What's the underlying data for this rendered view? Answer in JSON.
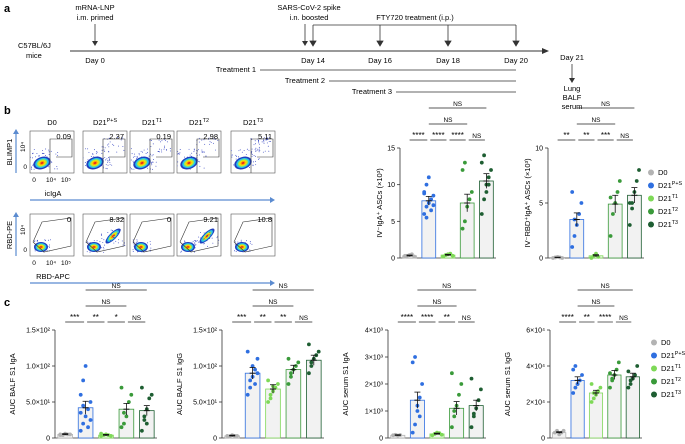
{
  "panel_labels": {
    "a": "a",
    "b": "b",
    "c": "c"
  },
  "timeline": {
    "mouse_line1": "C57BL/6J",
    "mouse_line2": "mice",
    "events": [
      {
        "day": "Day 0",
        "note1": "mRNA-LNP",
        "note2": "i.m. primed"
      },
      {
        "day": "Day 14",
        "note1": "SARS-CoV-2 spike",
        "note2": "i.n. boosted"
      },
      {
        "day": "Day 16",
        "note1": "",
        "note2": ""
      },
      {
        "day": "Day 18",
        "note1": "",
        "note2": ""
      },
      {
        "day": "Day 20",
        "note1": "",
        "note2": ""
      },
      {
        "day": "Day 21",
        "note1": "",
        "note2": ""
      }
    ],
    "fty_label": "FTY720 treatment (i.p.)",
    "treatments": [
      "Treatment 1",
      "Treatment 2",
      "Treatment 3"
    ],
    "collect": [
      "Lung",
      "BALF",
      "serum"
    ]
  },
  "flow": {
    "groups": [
      "D0",
      "D21P+S",
      "D21T1",
      "D21T2",
      "D21T3"
    ],
    "group_display": [
      {
        "base": "D0",
        "sup": ""
      },
      {
        "base": "D21",
        "sup": "P+S"
      },
      {
        "base": "D21",
        "sup": "T1"
      },
      {
        "base": "D21",
        "sup": "T2"
      },
      {
        "base": "D21",
        "sup": "T3"
      }
    ],
    "row1": {
      "ylabel": "BLIMP1",
      "xlabel": "icIgA",
      "values": [
        "0.09",
        "2.37",
        "0.19",
        "2.98",
        "5.11"
      ]
    },
    "row2": {
      "ylabel": "RBD-PE",
      "xlabel": "RBD-APC",
      "values": [
        "0",
        "8.32",
        "0",
        "9.21",
        "10.8"
      ]
    },
    "ticks_x": [
      "0",
      "10⁴",
      "10⁵"
    ],
    "ticks_y": [
      "0",
      "10⁴"
    ]
  },
  "legend": {
    "entries": [
      {
        "base": "D0",
        "sup": "",
        "color": "#b3b3b3"
      },
      {
        "base": "D21",
        "sup": "P+S",
        "color": "#2f6fe0"
      },
      {
        "base": "D21",
        "sup": "T1",
        "color": "#7ed957"
      },
      {
        "base": "D21",
        "sup": "T2",
        "color": "#3a9a3a"
      },
      {
        "base": "D21",
        "sup": "T3",
        "color": "#1e5e32"
      }
    ]
  },
  "colors": {
    "D0": "#b3b3b3",
    "PS": "#2f6fe0",
    "T1": "#7ed957",
    "T2": "#3a9a3a",
    "T3": "#1e5e32",
    "bar": "#f2f2f2"
  },
  "chart_data": [
    {
      "id": "b1",
      "type": "bar",
      "title": "",
      "ylabel": "IV⁻IgA⁺ ASCs (×10³)",
      "categories": [
        "D0",
        "D21P+S",
        "D21T1",
        "D21T2",
        "D21T3"
      ],
      "values": [
        0.3,
        7.8,
        0.4,
        7.5,
        10.5
      ],
      "errors": [
        0.1,
        0.6,
        0.1,
        1.2,
        1.0
      ],
      "ylim": [
        0,
        15
      ],
      "ticks": [
        0,
        5,
        10,
        15
      ],
      "points": [
        [
          0.2,
          0.3,
          0.4,
          0.5,
          0.2,
          0.3
        ],
        [
          6,
          7,
          7.5,
          8,
          8.5,
          9,
          10,
          11,
          6.5,
          7.2,
          8.8,
          5.5
        ],
        [
          0.2,
          0.4,
          0.5,
          0.6,
          0.3
        ],
        [
          4,
          5,
          7,
          8,
          9,
          12,
          13
        ],
        [
          6,
          8,
          10,
          11,
          12,
          13,
          14,
          9,
          10
        ]
      ],
      "sig": [
        "****",
        "****",
        "****",
        "NS",
        "NS",
        "NS"
      ]
    },
    {
      "id": "b2",
      "type": "bar",
      "title": "",
      "ylabel": "IV⁻RBD⁺IgA⁺ ASCs (×10³)",
      "categories": [
        "D0",
        "D21P+S",
        "D21T1",
        "D21T2",
        "D21T3"
      ],
      "values": [
        0.05,
        3.5,
        0.2,
        4.9,
        5.7
      ],
      "errors": [
        0.02,
        0.6,
        0.1,
        0.8,
        0.7
      ],
      "ylim": [
        0,
        10
      ],
      "ticks": [
        0,
        5,
        10
      ],
      "points": [
        [
          0,
          0.05,
          0.1,
          0.05,
          0
        ],
        [
          1,
          2,
          3,
          4,
          5,
          6,
          3.5
        ],
        [
          0,
          0.2,
          0.4,
          0.1
        ],
        [
          2,
          4,
          5,
          6,
          7,
          5.5
        ],
        [
          3,
          5,
          6,
          7,
          8,
          5,
          4.5
        ]
      ],
      "sig": [
        "**",
        "**",
        "***",
        "NS",
        "NS",
        "NS"
      ]
    },
    {
      "id": "c1",
      "type": "bar",
      "title": "",
      "ylabel": "AUC BALF S1 IgA",
      "yexp": "2",
      "categories": [
        "D0",
        "D21P+S",
        "D21T1",
        "D21T2",
        "D21T3"
      ],
      "values": [
        5,
        42,
        4,
        40,
        38
      ],
      "errors": [
        1,
        9,
        1,
        8,
        7
      ],
      "ylim": [
        0,
        150
      ],
      "ticks": [
        0,
        50,
        100,
        150
      ],
      "tick_labels": [
        "0",
        "5.0×10¹",
        "1.0×10²",
        "1.5×10²"
      ],
      "points": [
        [
          5,
          4,
          6,
          5,
          5,
          4
        ],
        [
          10,
          20,
          30,
          40,
          50,
          60,
          80,
          100,
          15,
          25,
          35,
          45
        ],
        [
          3,
          4,
          5,
          4,
          3,
          6
        ],
        [
          15,
          20,
          30,
          50,
          60,
          70,
          35
        ],
        [
          10,
          25,
          40,
          55,
          60,
          70,
          30,
          20
        ]
      ],
      "sig": [
        "***",
        "**",
        "*",
        "NS",
        "NS",
        "NS"
      ]
    },
    {
      "id": "c2",
      "type": "bar",
      "title": "",
      "ylabel": "AUC BALF S1 IgG",
      "yexp": "2",
      "categories": [
        "D0",
        "D21P+S",
        "D21T1",
        "D21T2",
        "D21T3"
      ],
      "values": [
        3,
        90,
        68,
        95,
        108
      ],
      "errors": [
        1,
        8,
        6,
        6,
        7
      ],
      "ylim": [
        0,
        150
      ],
      "ticks": [
        0,
        50,
        100,
        150
      ],
      "tick_labels": [
        "0",
        "5.0×10¹",
        "1.0×10²",
        "1.5×10²"
      ],
      "points": [
        [
          3,
          2,
          4,
          3,
          3
        ],
        [
          60,
          70,
          85,
          95,
          110,
          120,
          80,
          100,
          75,
          90
        ],
        [
          50,
          55,
          65,
          70,
          75,
          80,
          60,
          72
        ],
        [
          75,
          85,
          95,
          100,
          105,
          110,
          90
        ],
        [
          90,
          100,
          110,
          115,
          120,
          130,
          105
        ]
      ],
      "sig": [
        "***",
        "**",
        "**",
        "NS",
        "NS",
        "NS"
      ]
    },
    {
      "id": "c3",
      "type": "bar",
      "title": "",
      "ylabel": "AUC serum S1 IgA",
      "yexp": "3",
      "categories": [
        "D0",
        "D21P+S",
        "D21T1",
        "D21T2",
        "D21T3"
      ],
      "values": [
        100,
        1400,
        150,
        1100,
        1200
      ],
      "errors": [
        20,
        300,
        30,
        250,
        200
      ],
      "ylim": [
        0,
        4000
      ],
      "ticks": [
        0,
        1000,
        2000,
        3000,
        4000
      ],
      "tick_labels": [
        "0",
        "1×10³",
        "2×10³",
        "3×10³",
        "4×10³"
      ],
      "points": [
        [
          100,
          120,
          90,
          110
        ],
        [
          200,
          500,
          1000,
          1500,
          2000,
          2800,
          3000,
          1200,
          800
        ],
        [
          100,
          150,
          200,
          180,
          120
        ],
        [
          400,
          800,
          1200,
          1600,
          2000,
          2400,
          1000
        ],
        [
          400,
          800,
          1100,
          1400,
          1800,
          2200,
          900
        ]
      ],
      "sig": [
        "****",
        "****",
        "**",
        "NS",
        "NS",
        "NS"
      ]
    },
    {
      "id": "c4",
      "type": "bar",
      "title": "",
      "ylabel": "AUC serum S1 IgG",
      "yexp": "4",
      "categories": [
        "D0",
        "D21P+S",
        "D21T1",
        "D21T2",
        "D21T3"
      ],
      "values": [
        3,
        32,
        25,
        35,
        34
      ],
      "errors": [
        0.5,
        2,
        1.5,
        2.5,
        2
      ],
      "ylim": [
        0,
        60
      ],
      "ticks": [
        0,
        20,
        40,
        60
      ],
      "tick_labels": [
        "0",
        "2×10⁴",
        "4×10⁴",
        "6×10⁴"
      ],
      "points": [
        [
          3,
          4,
          2,
          3,
          4
        ],
        [
          25,
          28,
          30,
          32,
          35,
          38,
          40,
          30
        ],
        [
          20,
          22,
          24,
          26,
          28,
          30,
          25
        ],
        [
          28,
          32,
          35,
          38,
          42,
          36,
          33
        ],
        [
          28,
          30,
          33,
          35,
          40,
          37,
          32
        ]
      ],
      "sig": [
        "****",
        "**",
        "****",
        "NS",
        "NS",
        "NS"
      ]
    }
  ]
}
